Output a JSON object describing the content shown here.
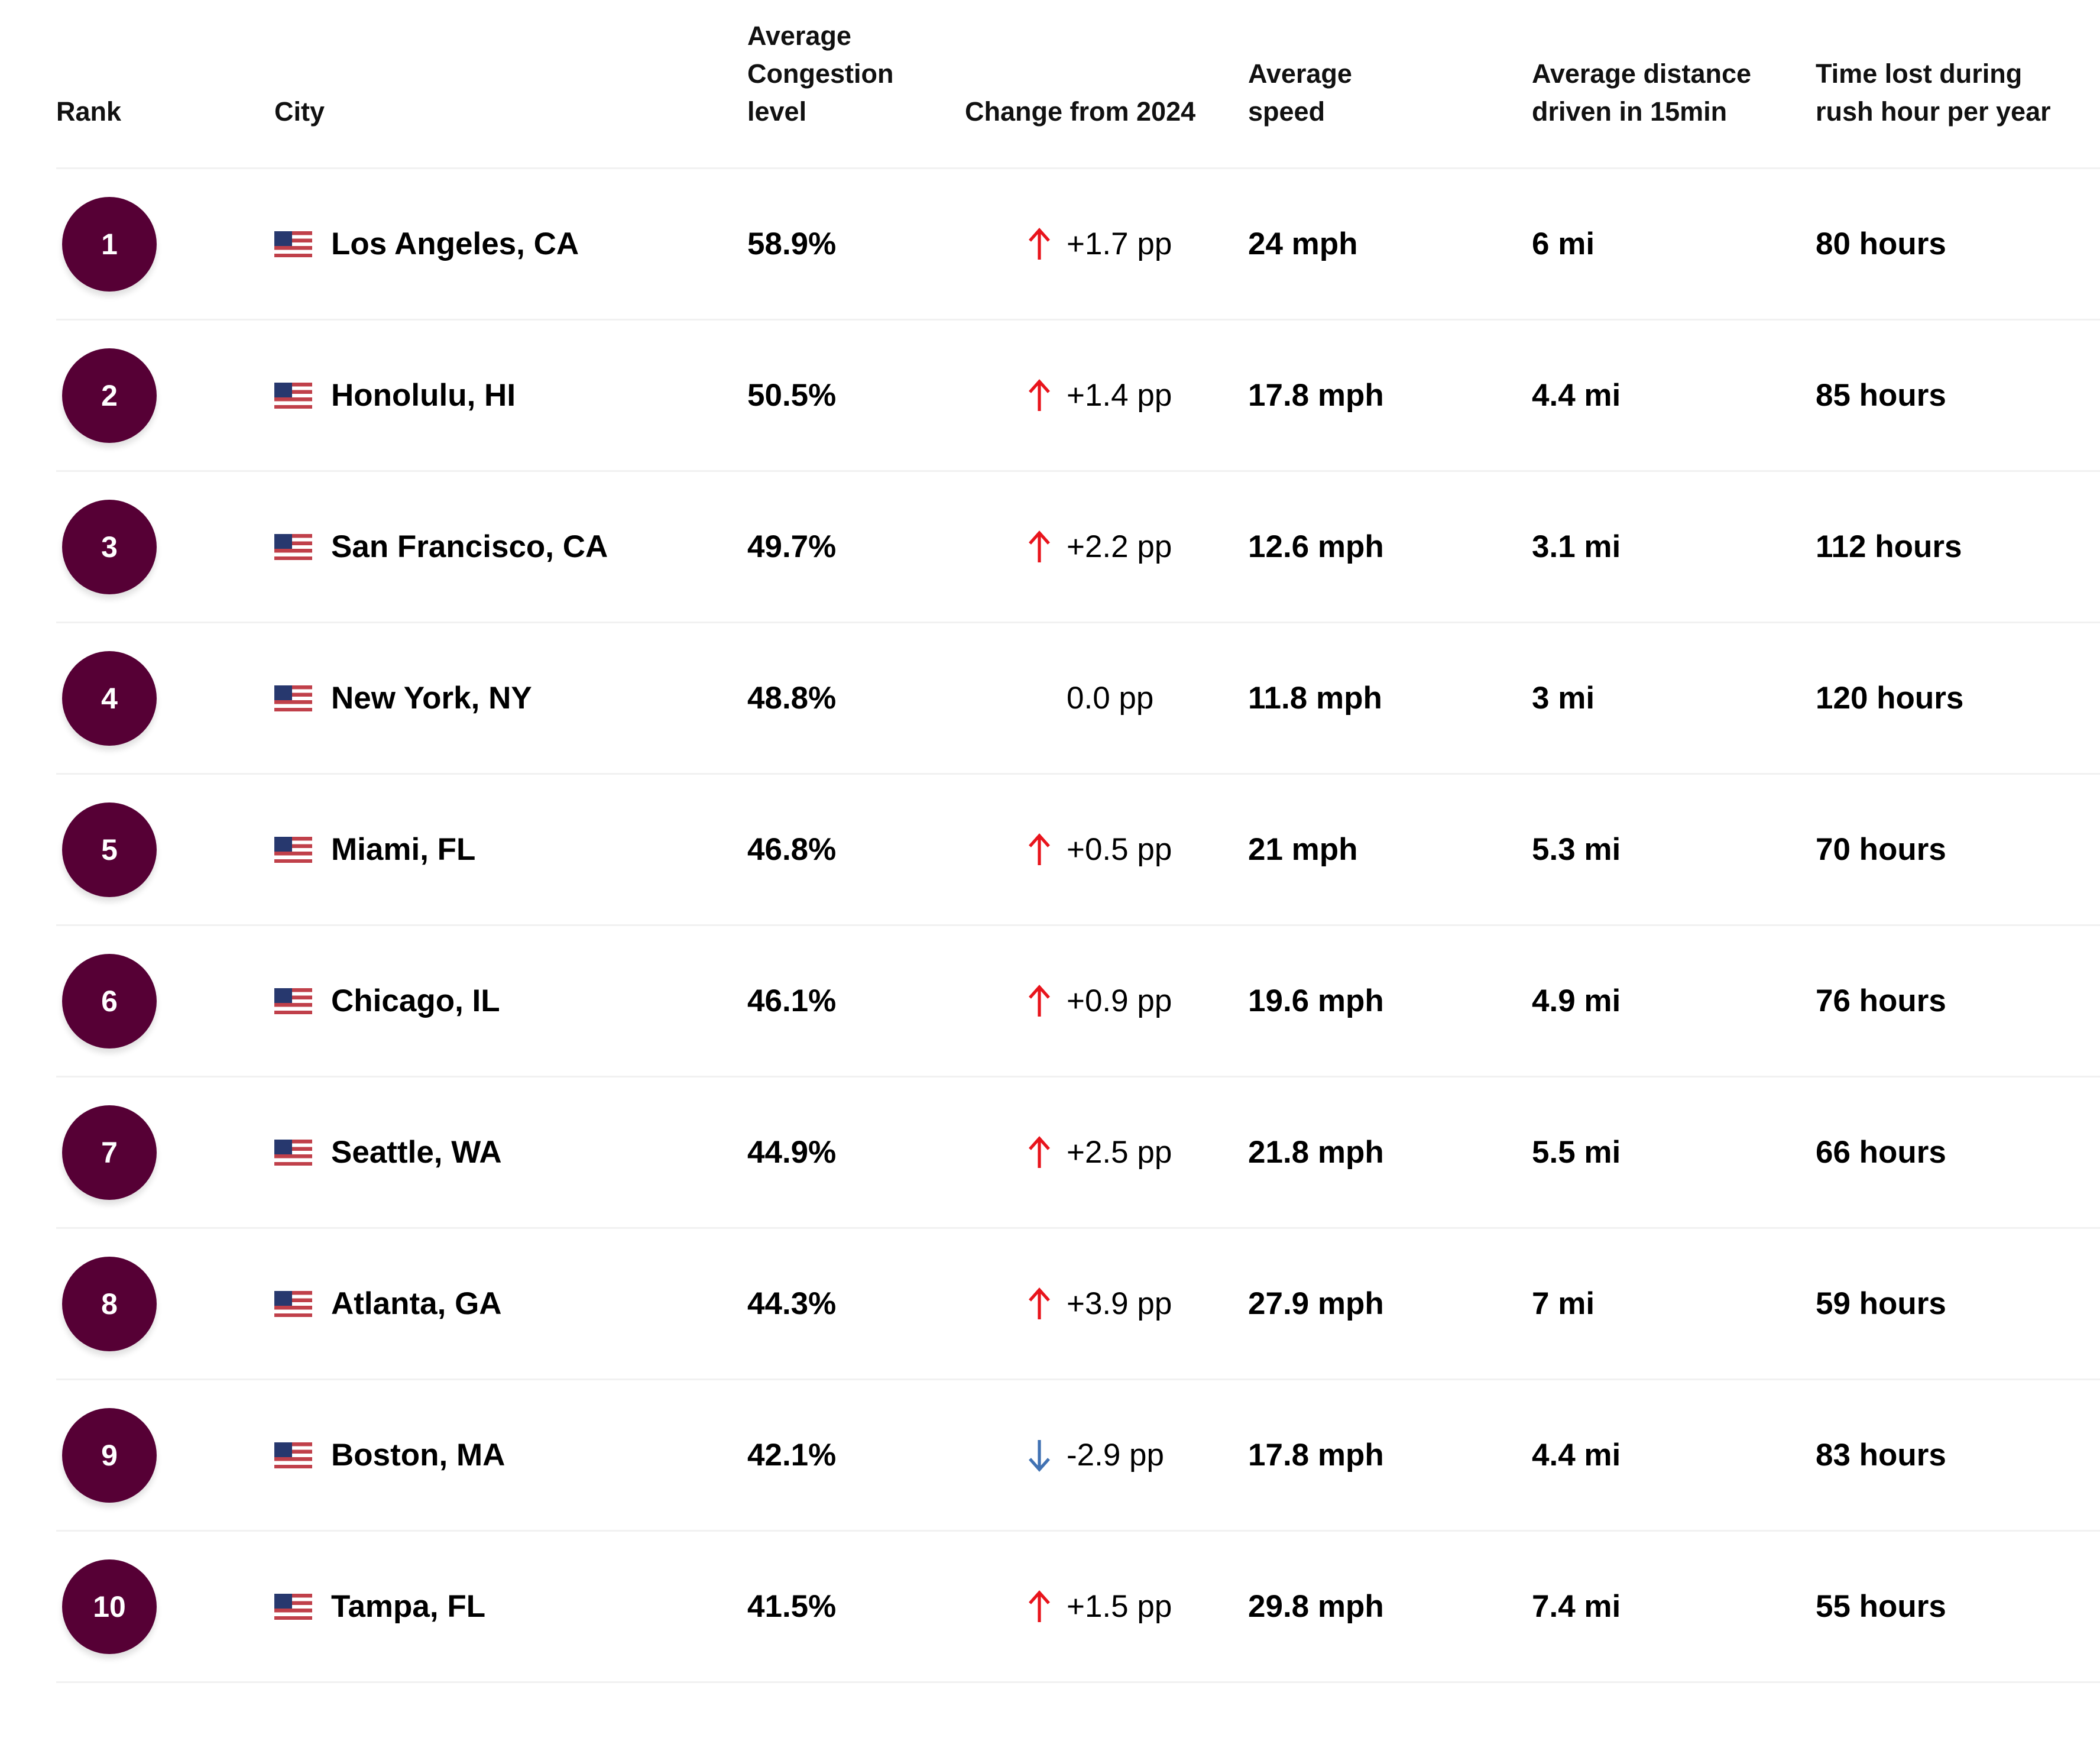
{
  "headers": {
    "rank": "Rank",
    "city": "City",
    "congestion": [
      "Average",
      "Congestion",
      "level"
    ],
    "change": "Change from 2024",
    "speed": [
      "Average",
      "speed"
    ],
    "distance": [
      "Average distance",
      "driven in 15min"
    ],
    "time_lost": [
      "Time lost during",
      "rush hour per year"
    ]
  },
  "colors": {
    "rank_badge": "#560035",
    "up_arrow": "#e8141c",
    "down_arrow": "#4172b3"
  },
  "rows": [
    {
      "rank": "1",
      "city": "Los Angeles, CA",
      "flag": "us-flag",
      "congestion": "58.9%",
      "trend": "up",
      "change": "+1.7 pp",
      "speed": "24 mph",
      "distance": "6 mi",
      "time_lost": "80 hours"
    },
    {
      "rank": "2",
      "city": "Honolulu, HI",
      "flag": "us-flag",
      "congestion": "50.5%",
      "trend": "up",
      "change": "+1.4 pp",
      "speed": "17.8 mph",
      "distance": "4.4 mi",
      "time_lost": "85 hours"
    },
    {
      "rank": "3",
      "city": "San Francisco, CA",
      "flag": "us-flag",
      "congestion": "49.7%",
      "trend": "up",
      "change": "+2.2 pp",
      "speed": "12.6 mph",
      "distance": "3.1 mi",
      "time_lost": "112 hours"
    },
    {
      "rank": "4",
      "city": "New York, NY",
      "flag": "us-flag",
      "congestion": "48.8%",
      "trend": "none",
      "change": "0.0 pp",
      "speed": "11.8 mph",
      "distance": "3 mi",
      "time_lost": "120 hours"
    },
    {
      "rank": "5",
      "city": "Miami, FL",
      "flag": "us-flag",
      "congestion": "46.8%",
      "trend": "up",
      "change": "+0.5 pp",
      "speed": "21 mph",
      "distance": "5.3 mi",
      "time_lost": "70 hours"
    },
    {
      "rank": "6",
      "city": "Chicago, IL",
      "flag": "us-flag",
      "congestion": "46.1%",
      "trend": "up",
      "change": "+0.9 pp",
      "speed": "19.6 mph",
      "distance": "4.9 mi",
      "time_lost": "76 hours"
    },
    {
      "rank": "7",
      "city": "Seattle, WA",
      "flag": "us-flag",
      "congestion": "44.9%",
      "trend": "up",
      "change": "+2.5 pp",
      "speed": "21.8 mph",
      "distance": "5.5 mi",
      "time_lost": "66 hours"
    },
    {
      "rank": "8",
      "city": "Atlanta, GA",
      "flag": "us-flag",
      "congestion": "44.3%",
      "trend": "up",
      "change": "+3.9 pp",
      "speed": "27.9 mph",
      "distance": "7 mi",
      "time_lost": "59 hours"
    },
    {
      "rank": "9",
      "city": "Boston, MA",
      "flag": "us-flag",
      "congestion": "42.1%",
      "trend": "down",
      "change": "-2.9 pp",
      "speed": "17.8 mph",
      "distance": "4.4 mi",
      "time_lost": "83 hours"
    },
    {
      "rank": "10",
      "city": "Tampa, FL",
      "flag": "us-flag",
      "congestion": "41.5%",
      "trend": "up",
      "change": "+1.5 pp",
      "speed": "29.8 mph",
      "distance": "7.4 mi",
      "time_lost": "55 hours"
    }
  ]
}
